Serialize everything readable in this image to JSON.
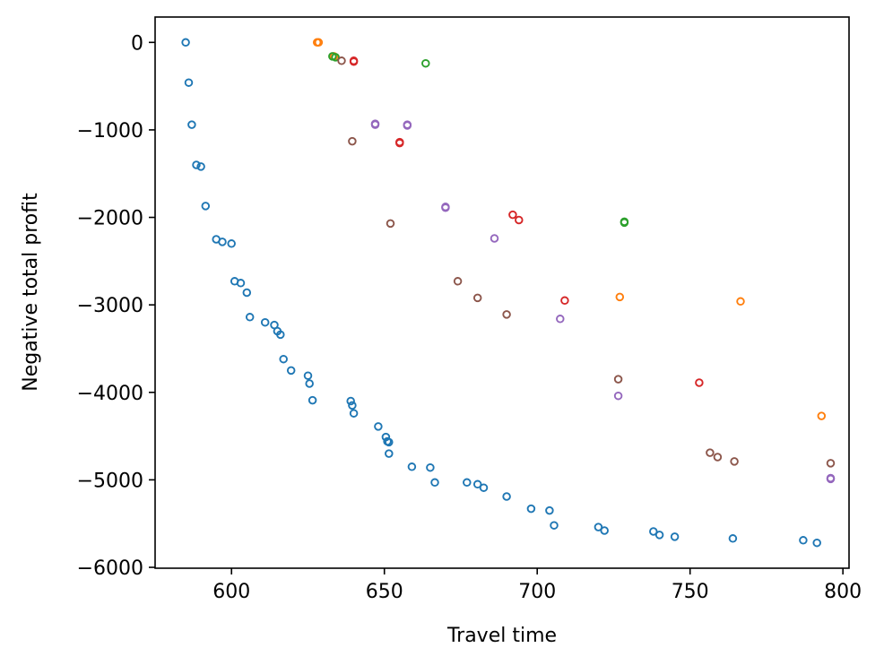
{
  "chart_data": {
    "type": "scatter",
    "title": "",
    "xlabel": "Travel time",
    "ylabel": "Negative total profit",
    "xlim": [
      575,
      802
    ],
    "ylim": [
      -6010,
      290
    ],
    "xticks": [
      600,
      650,
      700,
      750,
      800
    ],
    "yticks": [
      0,
      -1000,
      -2000,
      -3000,
      -4000,
      -5000,
      -6000
    ],
    "xtick_labels": [
      "600",
      "650",
      "700",
      "750",
      "800"
    ],
    "ytick_labels": [
      "0",
      "−1000",
      "−2000",
      "−3000",
      "−4000",
      "−5000",
      "−6000"
    ],
    "grid": false,
    "marker": "open-circle",
    "series": [
      {
        "color": "#1f77b4",
        "points": [
          [
            585,
            0
          ],
          [
            586,
            -460
          ],
          [
            587,
            -940
          ],
          [
            588.5,
            -1400
          ],
          [
            590,
            -1420
          ],
          [
            591.5,
            -1870
          ],
          [
            595,
            -2250
          ],
          [
            597,
            -2280
          ],
          [
            600,
            -2300
          ],
          [
            601,
            -2730
          ],
          [
            603,
            -2750
          ],
          [
            605,
            -2860
          ],
          [
            606,
            -3140
          ],
          [
            611,
            -3200
          ],
          [
            614,
            -3230
          ],
          [
            615,
            -3300
          ],
          [
            616,
            -3340
          ],
          [
            617,
            -3620
          ],
          [
            619.5,
            -3750
          ],
          [
            625,
            -3810
          ],
          [
            625.5,
            -3900
          ],
          [
            626.5,
            -4090
          ],
          [
            639,
            -4100
          ],
          [
            639.5,
            -4150
          ],
          [
            640,
            -4240
          ],
          [
            648,
            -4390
          ],
          [
            650.5,
            -4510
          ],
          [
            651,
            -4560
          ],
          [
            651.5,
            -4570
          ],
          [
            651.5,
            -4700
          ],
          [
            659,
            -4850
          ],
          [
            665,
            -4860
          ],
          [
            666.5,
            -5030
          ],
          [
            677,
            -5030
          ],
          [
            680.5,
            -5050
          ],
          [
            682.5,
            -5090
          ],
          [
            690,
            -5190
          ],
          [
            698,
            -5330
          ],
          [
            704,
            -5350
          ],
          [
            705.5,
            -5520
          ],
          [
            720,
            -5540
          ],
          [
            722,
            -5580
          ],
          [
            738,
            -5590
          ],
          [
            740,
            -5630
          ],
          [
            745,
            -5650
          ],
          [
            764,
            -5670
          ],
          [
            787,
            -5690
          ],
          [
            791.5,
            -5720
          ]
        ]
      },
      {
        "color": "#ff7f0e",
        "points": [
          [
            628,
            0
          ],
          [
            628.5,
            0
          ],
          [
            633.5,
            -160
          ],
          [
            727,
            -2910
          ],
          [
            766.5,
            -2960
          ],
          [
            793,
            -4270
          ]
        ]
      },
      {
        "color": "#2ca02c",
        "points": [
          [
            633,
            -160
          ],
          [
            634,
            -170
          ],
          [
            663.5,
            -240
          ],
          [
            728.5,
            -2050
          ],
          [
            728.5,
            -2060
          ]
        ]
      },
      {
        "color": "#d62728",
        "points": [
          [
            640,
            -210
          ],
          [
            640,
            -220
          ],
          [
            655,
            -1140
          ],
          [
            655,
            -1150
          ],
          [
            692,
            -1970
          ],
          [
            694,
            -2030
          ],
          [
            709,
            -2950
          ],
          [
            753,
            -3890
          ]
        ]
      },
      {
        "color": "#9467bd",
        "points": [
          [
            647,
            -930
          ],
          [
            647,
            -940
          ],
          [
            657.5,
            -940
          ],
          [
            657.5,
            -950
          ],
          [
            670,
            -1880
          ],
          [
            670,
            -1890
          ],
          [
            686,
            -2240
          ],
          [
            707.5,
            -3160
          ],
          [
            726.5,
            -4040
          ],
          [
            796,
            -4980
          ],
          [
            796,
            -4990
          ]
        ]
      },
      {
        "color": "#8c564b",
        "points": [
          [
            636,
            -210
          ],
          [
            639.5,
            -1130
          ],
          [
            652,
            -2070
          ],
          [
            674,
            -2730
          ],
          [
            680.5,
            -2920
          ],
          [
            690,
            -3110
          ],
          [
            726.5,
            -3850
          ],
          [
            756.5,
            -4690
          ],
          [
            759,
            -4740
          ],
          [
            764.5,
            -4790
          ],
          [
            796,
            -4810
          ]
        ]
      }
    ]
  }
}
